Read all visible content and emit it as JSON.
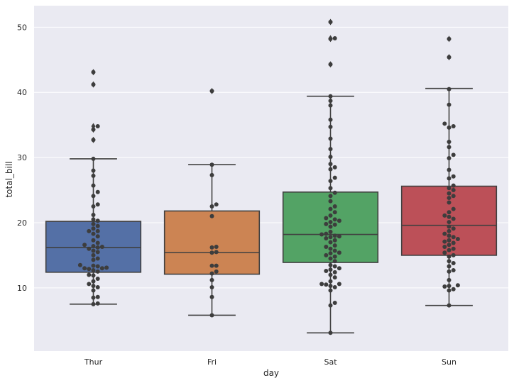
{
  "chart_data": {
    "type": "box",
    "xlabel": "day",
    "ylabel": "total_bill",
    "categories": [
      "Thur",
      "Fri",
      "Sat",
      "Sun"
    ],
    "ylim": [
      0.3,
      53.3
    ],
    "yticks": [
      10,
      20,
      30,
      40,
      50
    ],
    "grid": true,
    "background": "#eaeaf2",
    "box_colors": [
      "#5470a6",
      "#cc8453",
      "#53a365",
      "#bc5058"
    ],
    "point_color": "#3d3d3d",
    "boxes": [
      {
        "category": "Thur",
        "whislo": 7.5,
        "q1": 12.4,
        "med": 16.2,
        "q3": 20.2,
        "whishi": 29.8,
        "fliers": [
          32.7,
          34.3,
          34.8,
          41.2,
          43.1
        ]
      },
      {
        "category": "Fri",
        "whislo": 5.8,
        "q1": 12.1,
        "med": 15.4,
        "q3": 21.8,
        "whishi": 28.9,
        "fliers": [
          40.2
        ]
      },
      {
        "category": "Sat",
        "whislo": 3.1,
        "q1": 13.9,
        "med": 18.2,
        "q3": 24.7,
        "whishi": 39.4,
        "fliers": [
          44.3,
          48.2,
          48.3,
          50.8
        ]
      },
      {
        "category": "Sun",
        "whislo": 7.3,
        "q1": 15.0,
        "med": 19.6,
        "q3": 25.6,
        "whishi": 40.6,
        "fliers": [
          45.4,
          48.2
        ]
      }
    ],
    "swarm": [
      {
        "category": "Thur",
        "values": [
          7.5,
          7.6,
          8.5,
          8.6,
          9.6,
          10.1,
          10.3,
          10.6,
          11.0,
          11.4,
          11.9,
          12.0,
          12.5,
          12.7,
          12.9,
          13.0,
          13.0,
          13.1,
          13.3,
          13.4,
          13.5,
          14.3,
          14.5,
          15.0,
          15.5,
          15.7,
          16.0,
          16.2,
          16.3,
          16.4,
          16.6,
          16.9,
          17.3,
          17.9,
          18.3,
          18.7,
          18.7,
          19.1,
          19.5,
          19.8,
          20.3,
          20.5,
          21.2,
          22.5,
          22.8,
          24.1,
          24.7,
          25.7,
          27.2,
          28.0,
          29.8,
          32.7,
          34.3,
          34.8,
          41.2,
          43.1
        ]
      },
      {
        "category": "Fri",
        "values": [
          5.8,
          8.6,
          10.1,
          11.2,
          12.2,
          12.5,
          13.4,
          13.4,
          15.4,
          15.5,
          16.2,
          16.3,
          21.0,
          22.5,
          22.8,
          27.3,
          28.9,
          40.2
        ]
      },
      {
        "category": "Sat",
        "values": [
          3.1,
          7.3,
          7.7,
          9.6,
          10.1,
          10.3,
          10.5,
          10.6,
          10.6,
          11.0,
          11.6,
          12.0,
          12.4,
          12.6,
          12.8,
          13.0,
          13.3,
          13.5,
          14.1,
          14.5,
          14.8,
          15.0,
          15.3,
          15.4,
          15.7,
          16.0,
          16.3,
          16.5,
          17.0,
          17.3,
          17.6,
          17.8,
          17.9,
          18.0,
          18.2,
          18.3,
          18.6,
          19.4,
          19.7,
          19.8,
          20.1,
          20.3,
          20.5,
          20.7,
          21.1,
          21.6,
          22.1,
          22.5,
          23.3,
          24.1,
          24.6,
          25.3,
          26.4,
          26.9,
          28.2,
          28.5,
          29.0,
          30.1,
          31.3,
          32.9,
          34.7,
          35.8,
          38.0,
          38.7,
          39.4,
          44.3,
          48.2,
          48.3,
          50.8
        ]
      },
      {
        "category": "Sun",
        "values": [
          7.3,
          9.6,
          9.8,
          10.2,
          10.3,
          10.4,
          11.2,
          12.5,
          12.7,
          13.3,
          13.8,
          14.1,
          14.8,
          15.0,
          15.4,
          15.8,
          16.0,
          16.3,
          16.6,
          16.9,
          17.1,
          17.3,
          17.5,
          17.8,
          18.0,
          18.3,
          18.7,
          19.1,
          19.4,
          20.1,
          20.6,
          20.9,
          21.1,
          21.6,
          22.1,
          23.1,
          23.8,
          24.1,
          24.5,
          25.0,
          25.3,
          25.7,
          26.8,
          27.1,
          28.1,
          29.9,
          30.4,
          31.6,
          32.4,
          34.6,
          34.8,
          35.2,
          38.1,
          40.5,
          45.4,
          48.2
        ]
      }
    ]
  }
}
